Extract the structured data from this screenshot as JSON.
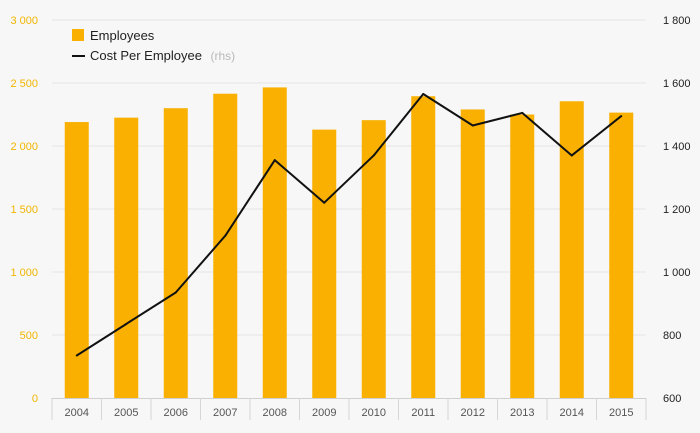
{
  "chart_data": {
    "type": "bar",
    "categories": [
      "2004",
      "2005",
      "2006",
      "2007",
      "2008",
      "2009",
      "2010",
      "2011",
      "2012",
      "2013",
      "2014",
      "2015"
    ],
    "series": [
      {
        "name": "Employees",
        "type": "bar",
        "axis": "left",
        "color": "#f9b000",
        "values": [
          2190,
          2225,
          2300,
          2415,
          2465,
          2130,
          2205,
          2395,
          2290,
          2250,
          2355,
          2265
        ]
      },
      {
        "name": "Cost Per Employee",
        "type": "line",
        "axis": "right",
        "color": "#111111",
        "values": [
          735,
          835,
          935,
          1115,
          1355,
          1220,
          1370,
          1565,
          1465,
          1505,
          1370,
          1495
        ]
      }
    ],
    "legend": {
      "position": "top-left",
      "items": [
        {
          "label": "Employees",
          "suffix": ""
        },
        {
          "label": "Cost Per Employee",
          "suffix": "(rhs)"
        }
      ]
    },
    "y_left": {
      "ylim": [
        0,
        3000
      ],
      "ticks": [
        0,
        500,
        1000,
        1500,
        2000,
        2500,
        3000
      ],
      "tick_labels": [
        "0",
        "500",
        "1 000",
        "1 500",
        "2 000",
        "2 500",
        "3 000"
      ],
      "color": "#f2b600"
    },
    "y_right": {
      "ylim": [
        600,
        1800
      ],
      "ticks": [
        600,
        800,
        1000,
        1200,
        1400,
        1600,
        1800
      ],
      "tick_labels": [
        "600",
        "800",
        "1 000",
        "1 200",
        "1 400",
        "1 600",
        "1 800"
      ],
      "color": "#222222"
    },
    "grid": true,
    "title": "",
    "xlabel": "",
    "ylabel": ""
  }
}
